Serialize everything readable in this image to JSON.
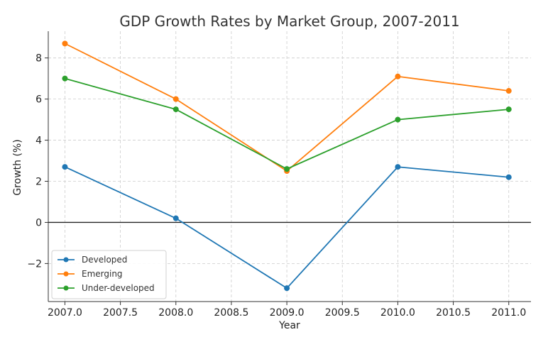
{
  "chart_data": {
    "type": "line",
    "title": "GDP Growth Rates by Market Group, 2007-2011",
    "xlabel": "Year",
    "ylabel": "Growth (%)",
    "x": [
      2007,
      2008,
      2009,
      2010,
      2011
    ],
    "xlim": [
      2006.85,
      2011.2
    ],
    "ylim": [
      -3.85,
      9.3
    ],
    "xticks": [
      2007.0,
      2007.5,
      2008.0,
      2008.5,
      2009.0,
      2009.5,
      2010.0,
      2010.5,
      2011.0
    ],
    "xtick_labels": [
      "2007.0",
      "2007.5",
      "2008.0",
      "2008.5",
      "2009.0",
      "2009.5",
      "2010.0",
      "2010.5",
      "2011.0"
    ],
    "yticks": [
      -2,
      0,
      2,
      4,
      6,
      8
    ],
    "ytick_labels": [
      "−2",
      "0",
      "2",
      "4",
      "6",
      "8"
    ],
    "grid": true,
    "zero_line": true,
    "legend_position": "lower-left",
    "series": [
      {
        "name": "Developed",
        "color": "#1f77b4",
        "values": [
          2.7,
          0.2,
          -3.2,
          2.7,
          2.2
        ]
      },
      {
        "name": "Emerging",
        "color": "#ff7f0e",
        "values": [
          8.7,
          6.0,
          2.5,
          7.1,
          6.4
        ]
      },
      {
        "name": "Under-developed",
        "color": "#2ca02c",
        "values": [
          7.0,
          5.5,
          2.6,
          5.0,
          5.5
        ]
      }
    ]
  }
}
